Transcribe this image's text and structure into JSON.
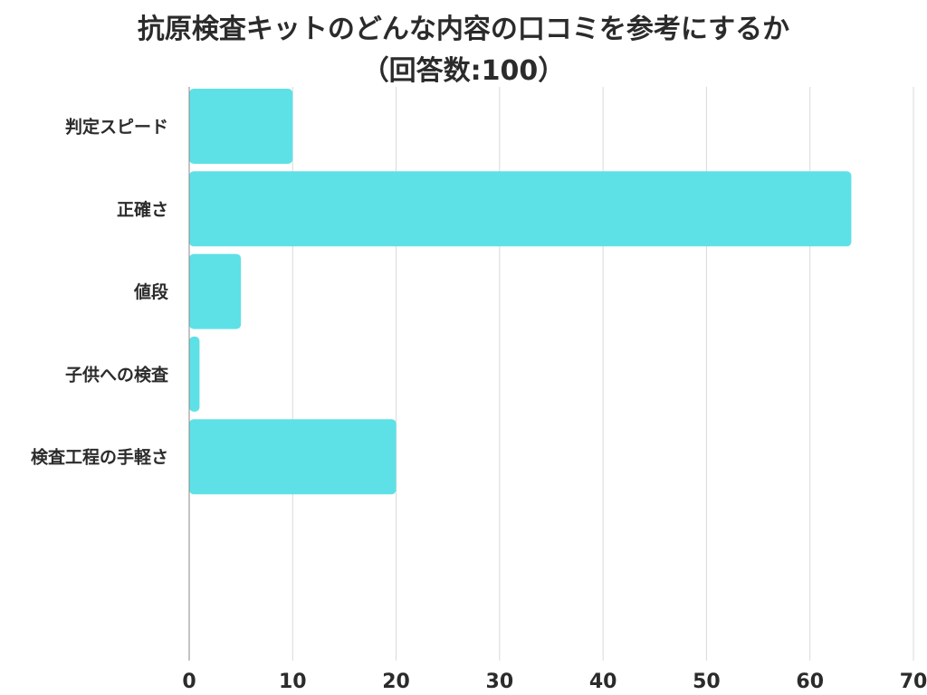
{
  "chart_data": {
    "type": "bar",
    "orientation": "horizontal",
    "title": "抗原検査キットのどんな内容の口コミを参考にするか",
    "subtitle": "（回答数:100）",
    "categories": [
      "判定スピード",
      "正確さ",
      "値段",
      "子供への検査",
      "検査工程の手軽さ"
    ],
    "values": [
      10,
      64,
      5,
      1,
      20
    ],
    "xlim": [
      0,
      70
    ],
    "xticks": [
      0,
      10,
      20,
      30,
      40,
      50,
      60,
      70
    ],
    "grid": true,
    "bar_color": "#5ee1e6",
    "grid_color": "#d9d9d9",
    "axis_color": "#888888"
  }
}
